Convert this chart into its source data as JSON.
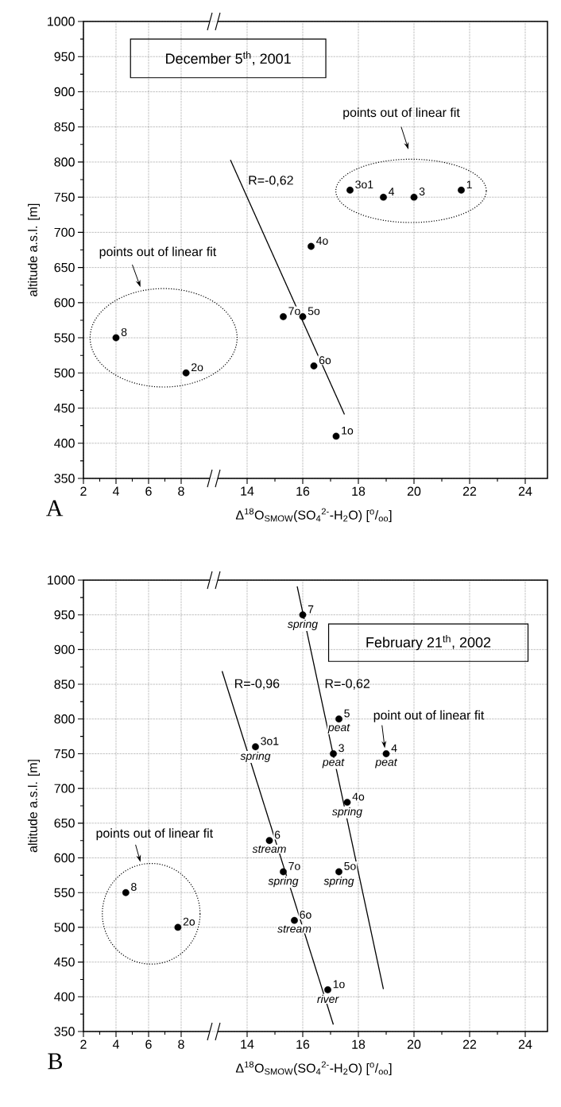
{
  "chart_data": [
    {
      "type": "scatter",
      "ylabel": "altitude a.s.l. [m]",
      "xlim": [
        2,
        10
      ],
      "ylim": [
        350,
        1000
      ],
      "xticks": [
        2,
        4,
        6,
        8
      ],
      "yticks": [
        350,
        400,
        450,
        500,
        550,
        600,
        650,
        700,
        750,
        800,
        850,
        900,
        950,
        1000
      ],
      "grid": true,
      "series": [
        {
          "color": "#000000",
          "x": [
            4,
            8.3
          ],
          "values": [
            550,
            500
          ]
        }
      ],
      "annotations": [
        "A",
        "points out of linear fit",
        {
          "text": "8",
          "x": 4,
          "y": 550
        },
        {
          "text": "2o",
          "x": 8.3,
          "y": 500
        }
      ]
    },
    {
      "type": "scatter",
      "title": "December 5$^{th}$, 2001",
      "xlabel": "Δ$^{18}$O$_{SMOW}$(SO$_{4}$$^{2-}$-H$_{2}$O)    [$^{o}$/$_{oo}$]",
      "xlim": [
        12.8,
        24.8
      ],
      "ylim": [
        350,
        1000
      ],
      "xticks": [
        14,
        16,
        18,
        20,
        22,
        24
      ],
      "yticks": [
        350,
        400,
        450,
        500,
        550,
        600,
        650,
        700,
        750,
        800,
        850,
        900,
        950,
        1000
      ],
      "grid": true,
      "tick_labels": "x",
      "series": [
        {
          "color": "#000000",
          "x": [
            15.3,
            16,
            16.3,
            16.4,
            17.2,
            17.7,
            18.9,
            20,
            21.7
          ],
          "values": [
            580,
            580,
            680,
            510,
            410,
            760,
            750,
            750,
            760
          ]
        },
        {
          "type": "line",
          "color": "#000000",
          "x": [
            13.4,
            17.5
          ],
          "values": [
            803,
            441
          ]
        }
      ],
      "annotations": [
        "R=-0,62",
        "points out of linear fit",
        {
          "text": "7o",
          "x": 15.3,
          "y": 580
        },
        {
          "text": "5o",
          "x": 16,
          "y": 580
        },
        {
          "text": "4o",
          "x": 16.3,
          "y": 680
        },
        {
          "text": "6o",
          "x": 16.4,
          "y": 510
        },
        {
          "text": "1o",
          "x": 17.2,
          "y": 410
        },
        {
          "text": "3o1",
          "x": 17.7,
          "y": 760
        },
        {
          "text": "4",
          "x": 18.9,
          "y": 750
        },
        {
          "text": "3",
          "x": 20,
          "y": 750
        },
        {
          "text": "1",
          "x": 21.7,
          "y": 760
        }
      ]
    },
    {
      "type": "scatter",
      "ylabel": "altitude a.s.l. [m]",
      "xlim": [
        2,
        10
      ],
      "ylim": [
        350,
        1000
      ],
      "xticks": [
        2,
        4,
        6,
        8
      ],
      "yticks": [
        350,
        400,
        450,
        500,
        550,
        600,
        650,
        700,
        750,
        800,
        850,
        900,
        950,
        1000
      ],
      "grid": true,
      "series": [
        {
          "color": "#000000",
          "x": [
            4.6,
            7.8
          ],
          "values": [
            550,
            500
          ]
        }
      ],
      "annotations": [
        "B",
        "points out of linear fit",
        {
          "text": "8",
          "x": 4.6,
          "y": 550
        },
        {
          "text": "2o",
          "x": 7.8,
          "y": 500
        }
      ]
    },
    {
      "type": "scatter",
      "title": "February 21$^{th}$, 2002",
      "xlabel": "Δ$^{18}$O$_{SMOW}$(SO$_{4}$$^{2-}$-H$_{2}$O)    [$^{o}$/$_{oo}$]",
      "xlim": [
        12.8,
        24.8
      ],
      "ylim": [
        350,
        1000
      ],
      "xticks": [
        14,
        16,
        18,
        20,
        22,
        24
      ],
      "yticks": [
        350,
        400,
        450,
        500,
        550,
        600,
        650,
        700,
        750,
        800,
        850,
        900,
        950,
        1000
      ],
      "grid": true,
      "tick_labels": "x",
      "series": [
        {
          "color": "#000000",
          "x": [
            16,
            17.3,
            17.1,
            19,
            14.3,
            17.6,
            14.8,
            15.3,
            17.3,
            15.7,
            16.9
          ],
          "values": [
            950,
            800,
            750,
            750,
            760,
            680,
            625,
            580,
            580,
            510,
            410
          ]
        },
        {
          "type": "line",
          "color": "#000000",
          "x": [
            13.1,
            17.1
          ],
          "values": [
            869,
            360
          ]
        },
        {
          "type": "line",
          "color": "#000000",
          "x": [
            15.8,
            18.9
          ],
          "values": [
            991,
            411
          ]
        }
      ],
      "annotations": [
        "R=-0,96",
        "R=-0,62",
        "point out of linear fit",
        {
          "text": "7",
          "x": 16,
          "y": 950
        },
        {
          "text": "spring",
          "x": 16,
          "y": 950
        },
        {
          "text": "5",
          "x": 17.3,
          "y": 800
        },
        {
          "text": "peat",
          "x": 17.3,
          "y": 800
        },
        {
          "text": "3",
          "x": 17.1,
          "y": 750
        },
        {
          "text": "peat",
          "x": 17.1,
          "y": 750
        },
        {
          "text": "4",
          "x": 19,
          "y": 750
        },
        {
          "text": "peat",
          "x": 19,
          "y": 750
        },
        {
          "text": "3o1",
          "x": 14.3,
          "y": 760
        },
        {
          "text": "spring",
          "x": 14.3,
          "y": 760
        },
        {
          "text": "4o",
          "x": 17.6,
          "y": 680
        },
        {
          "text": "spring",
          "x": 17.6,
          "y": 680
        },
        {
          "text": "6",
          "x": 14.8,
          "y": 625
        },
        {
          "text": "stream",
          "x": 14.8,
          "y": 625
        },
        {
          "text": "7o",
          "x": 15.3,
          "y": 580
        },
        {
          "text": "spring",
          "x": 15.3,
          "y": 580
        },
        {
          "text": "5o",
          "x": 17.3,
          "y": 580
        },
        {
          "text": "spring",
          "x": 17.3,
          "y": 580
        },
        {
          "text": "6o",
          "x": 15.7,
          "y": 510
        },
        {
          "text": "stream",
          "x": 15.7,
          "y": 510
        },
        {
          "text": "1o",
          "x": 16.9,
          "y": 410
        },
        {
          "text": "river",
          "x": 16.9,
          "y": 410
        }
      ]
    }
  ]
}
